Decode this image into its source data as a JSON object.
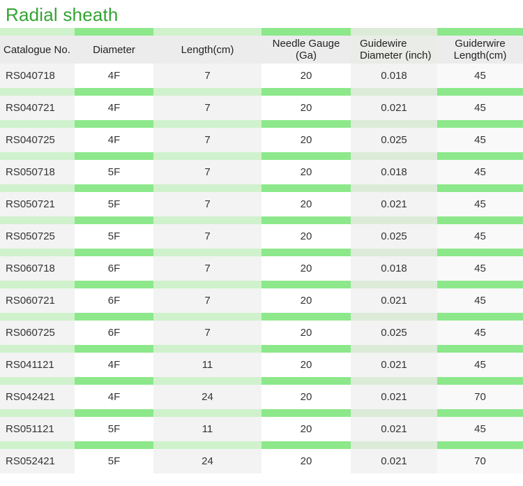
{
  "title": "Radial sheath",
  "colors": {
    "title_green": "#33a433",
    "band_bright": "#8ce88a",
    "band_pale": "#cff2cc",
    "band_pale_gray": "#dcebd8",
    "header_bg": "#ececec",
    "row_gray": "#f2f3f2",
    "row_white": "#ffffff"
  },
  "table": {
    "columns": [
      {
        "lines": [
          "Catalogue No."
        ],
        "align": "left"
      },
      {
        "lines": [
          "Diameter"
        ],
        "align": "center"
      },
      {
        "lines": [
          "Length(cm)"
        ],
        "align": "center"
      },
      {
        "lines": [
          "Needle Gauge",
          "(Ga)"
        ],
        "align": "center"
      },
      {
        "lines": [
          "Guidewire",
          "Diameter (inch)"
        ],
        "align": "left"
      },
      {
        "lines": [
          "Guiderwire",
          "Length(cm)"
        ],
        "align": "center"
      }
    ],
    "rows": [
      [
        "RS040718",
        "4F",
        "7",
        "20",
        "0.018",
        "45"
      ],
      [
        "RS040721",
        "4F",
        "7",
        "20",
        "0.021",
        "45"
      ],
      [
        "RS040725",
        "4F",
        "7",
        "20",
        "0.025",
        "45"
      ],
      [
        "RS050718",
        "5F",
        "7",
        "20",
        "0.018",
        "45"
      ],
      [
        "RS050721",
        "5F",
        "7",
        "20",
        "0.021",
        "45"
      ],
      [
        "RS050725",
        "5F",
        "7",
        "20",
        "0.025",
        "45"
      ],
      [
        "RS060718",
        "6F",
        "7",
        "20",
        "0.018",
        "45"
      ],
      [
        "RS060721",
        "6F",
        "7",
        "20",
        "0.021",
        "45"
      ],
      [
        "RS060725",
        "6F",
        "7",
        "20",
        "0.025",
        "45"
      ],
      [
        "RS041121",
        "4F",
        "11",
        "20",
        "0.021",
        "45"
      ],
      [
        "RS042421",
        "4F",
        "24",
        "20",
        "0.021",
        "70"
      ],
      [
        "RS051121",
        "5F",
        "11",
        "20",
        "0.021",
        "45"
      ],
      [
        "RS052421",
        "5F",
        "24",
        "20",
        "0.021",
        "70"
      ]
    ]
  }
}
